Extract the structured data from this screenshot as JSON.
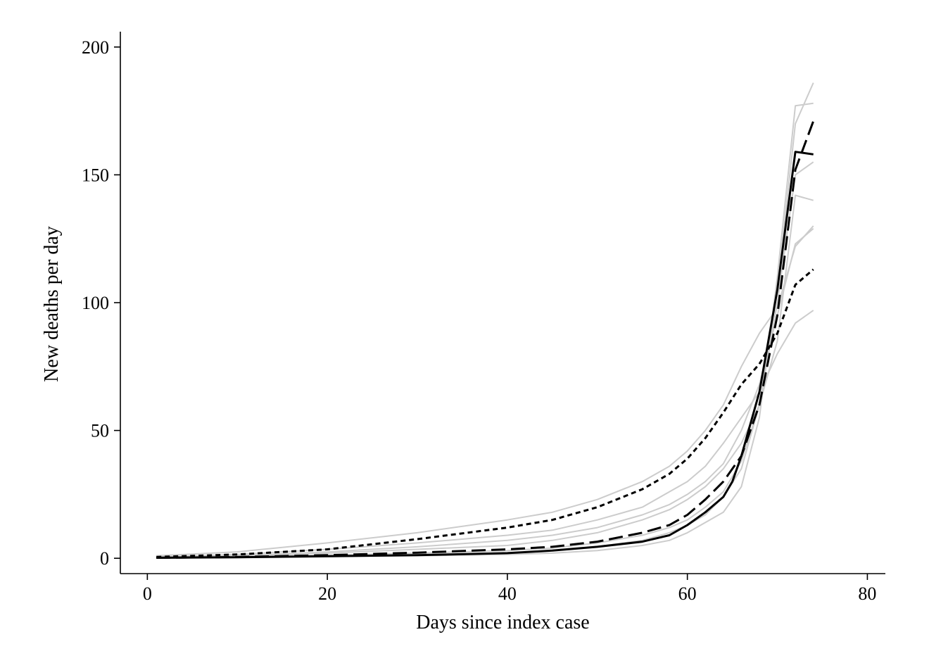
{
  "chart_data": {
    "type": "line",
    "title": "",
    "xlabel": "Days since index case",
    "ylabel": "New deaths per day",
    "xlim": [
      -3,
      82
    ],
    "ylim": [
      -6,
      206
    ],
    "xticks": [
      0,
      20,
      40,
      60,
      80
    ],
    "yticks": [
      0,
      50,
      100,
      150,
      200
    ],
    "grid": false,
    "colors": {
      "simulation": "#cccccc",
      "main": "#000000"
    },
    "simulations": [
      {
        "x": [
          1,
          10,
          20,
          30,
          40,
          45,
          50,
          55,
          58,
          60,
          62,
          64,
          66,
          68,
          70,
          72,
          74
        ],
        "y": [
          1,
          2.5,
          6,
          10,
          15,
          18,
          23,
          30,
          36,
          42,
          50,
          60,
          75,
          88,
          98,
          122,
          130
        ]
      },
      {
        "x": [
          1,
          10,
          20,
          30,
          40,
          45,
          50,
          55,
          58,
          60,
          62,
          64,
          66,
          68,
          70,
          72,
          74
        ],
        "y": [
          0.5,
          1.5,
          3.5,
          6,
          9,
          11,
          15,
          20,
          26,
          30,
          36,
          45,
          55,
          65,
          80,
          92,
          97
        ]
      },
      {
        "x": [
          1,
          10,
          20,
          30,
          40,
          45,
          50,
          55,
          58,
          60,
          62,
          64,
          66,
          68,
          70,
          72,
          74
        ],
        "y": [
          0.3,
          1,
          2,
          3.5,
          5,
          7,
          10,
          15,
          19,
          23,
          28,
          35,
          45,
          60,
          85,
          142,
          140
        ]
      },
      {
        "x": [
          1,
          10,
          20,
          30,
          40,
          45,
          50,
          55,
          58,
          60,
          62,
          64,
          66,
          68,
          70,
          72,
          74
        ],
        "y": [
          0.2,
          0.6,
          1.2,
          2,
          3,
          4,
          6,
          9,
          12,
          15,
          20,
          26,
          38,
          60,
          100,
          150,
          155
        ]
      },
      {
        "x": [
          1,
          10,
          20,
          30,
          40,
          45,
          50,
          55,
          58,
          60,
          62,
          64,
          66,
          68,
          70,
          72,
          74
        ],
        "y": [
          0.1,
          0.4,
          0.8,
          1.5,
          2,
          3,
          4.5,
          7,
          10,
          13,
          17,
          24,
          35,
          60,
          105,
          170,
          186
        ]
      },
      {
        "x": [
          1,
          10,
          20,
          30,
          40,
          45,
          50,
          55,
          58,
          60,
          62,
          64,
          66,
          68,
          70,
          72,
          74
        ],
        "y": [
          0.1,
          0.3,
          0.6,
          1,
          1.5,
          2,
          3,
          5,
          7,
          10,
          14,
          18,
          28,
          55,
          110,
          177,
          178
        ]
      },
      {
        "x": [
          1,
          10,
          20,
          30,
          40,
          45,
          50,
          55,
          58,
          60,
          62,
          64,
          66,
          68,
          70,
          72,
          74
        ],
        "y": [
          0.4,
          1,
          2.5,
          4.5,
          7,
          9,
          12,
          17,
          21,
          25,
          30,
          37,
          50,
          68,
          95,
          123,
          129
        ]
      }
    ],
    "series": [
      {
        "style": "dotted",
        "x": [
          1,
          10,
          20,
          30,
          40,
          45,
          50,
          55,
          58,
          60,
          62,
          64,
          66,
          68,
          70,
          72,
          74
        ],
        "y": [
          0.5,
          1.5,
          3.5,
          7.5,
          12,
          15,
          20,
          27,
          33,
          39,
          47,
          57,
          68,
          76,
          88,
          107,
          113
        ]
      },
      {
        "style": "dashed",
        "x": [
          1,
          10,
          20,
          30,
          40,
          45,
          50,
          55,
          58,
          60,
          62,
          64,
          66,
          68,
          70,
          72,
          74
        ],
        "y": [
          0.2,
          0.5,
          1.2,
          2.2,
          3.5,
          4.5,
          6.5,
          10,
          13,
          17,
          23,
          30,
          40,
          60,
          95,
          152,
          171
        ]
      },
      {
        "style": "solid",
        "x": [
          1,
          10,
          20,
          30,
          40,
          45,
          50,
          55,
          58,
          60,
          62,
          64,
          65,
          66,
          68,
          70,
          72,
          74
        ],
        "y": [
          0.2,
          0.4,
          0.8,
          1.2,
          2,
          3,
          4.5,
          6.5,
          9,
          13,
          18,
          24,
          30,
          40,
          65,
          105,
          159,
          158
        ]
      }
    ]
  }
}
